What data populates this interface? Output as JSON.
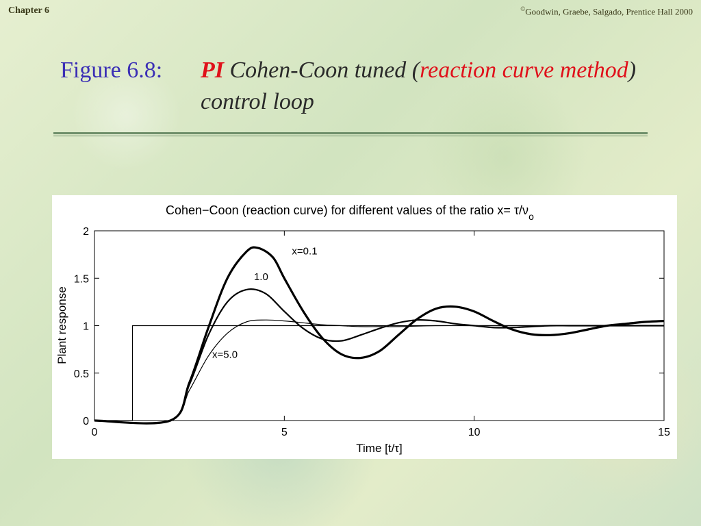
{
  "header": {
    "chapter": "Chapter 6",
    "copyright_symbol": "©",
    "copyright": "Goodwin, Graebe, Salgado,  Prentice Hall 2000"
  },
  "slide": {
    "figure_label": "Figure 6.8:",
    "title_pi": "PI",
    "title_part1": " Cohen-Coon tuned (",
    "title_red": "reaction curve method",
    "title_part2": ") control loop"
  },
  "chart_data": {
    "type": "line",
    "title": "Cohen−Coon (reaction curve)  for different values of the ratio  x= τ/ν",
    "title_subscript": "o",
    "xlabel": "Time [t/τ]",
    "ylabel": "Plant response",
    "xlim": [
      0,
      15
    ],
    "ylim": [
      0,
      2
    ],
    "xticks": [
      0,
      5,
      10,
      15
    ],
    "yticks": [
      0,
      0.5,
      1,
      1.5,
      2
    ],
    "ytick_labels": [
      "0",
      "0.5",
      "1",
      "1.5",
      "2"
    ],
    "annotations": [
      {
        "text": "x=0.1",
        "x": 5.2,
        "y": 1.75
      },
      {
        "text": "1.0",
        "x": 4.2,
        "y": 1.48
      },
      {
        "text": "x=5.0",
        "x": 3.1,
        "y": 0.66
      }
    ],
    "series": [
      {
        "key": "setpoint",
        "stroke_width": 1.2,
        "x": [
          0,
          1,
          1,
          15
        ],
        "y": [
          0,
          0,
          1,
          1
        ]
      },
      {
        "key": "x01",
        "stroke_width": 3.2,
        "x": [
          0,
          2,
          2.5,
          3,
          3.5,
          4,
          4.3,
          4.7,
          5,
          5.5,
          6,
          6.5,
          7,
          7.5,
          8,
          8.5,
          9,
          9.5,
          10,
          10.5,
          11,
          11.5,
          12,
          12.5,
          13,
          13.5,
          14,
          14.5,
          15
        ],
        "y": [
          0,
          0,
          0.4,
          0.98,
          1.5,
          1.78,
          1.82,
          1.72,
          1.5,
          1.15,
          0.87,
          0.7,
          0.66,
          0.73,
          0.9,
          1.07,
          1.18,
          1.2,
          1.15,
          1.05,
          0.96,
          0.91,
          0.9,
          0.92,
          0.96,
          1.0,
          1.02,
          1.04,
          1.05
        ]
      },
      {
        "key": "x10",
        "stroke_width": 2.2,
        "x": [
          0,
          2,
          2.5,
          3,
          3.5,
          4,
          4.5,
          5,
          5.5,
          6,
          6.5,
          7,
          7.5,
          8,
          8.5,
          9,
          9.5,
          10,
          10.5,
          11,
          11.5,
          12,
          12.5,
          13,
          13.5,
          14,
          14.5,
          15
        ],
        "y": [
          0,
          0,
          0.38,
          0.9,
          1.25,
          1.38,
          1.34,
          1.15,
          0.97,
          0.86,
          0.84,
          0.9,
          0.97,
          1.03,
          1.06,
          1.05,
          1.02,
          1.0,
          0.98,
          0.98,
          0.99,
          1.0,
          1.0,
          1.0,
          1.0,
          1.0,
          1.0,
          1.0
        ]
      },
      {
        "key": "x50",
        "stroke_width": 1.2,
        "x": [
          0,
          2,
          2.5,
          3,
          3.5,
          4,
          4.5,
          5,
          5.5,
          6,
          6.5,
          7,
          7.5,
          8,
          9,
          10,
          11,
          12,
          13,
          14,
          15
        ],
        "y": [
          0,
          0,
          0.32,
          0.68,
          0.92,
          1.04,
          1.06,
          1.05,
          1.03,
          1.01,
          1.0,
          0.99,
          0.99,
          0.99,
          1.0,
          1.0,
          1.0,
          1.0,
          1.0,
          1.0,
          1.0
        ]
      }
    ]
  }
}
